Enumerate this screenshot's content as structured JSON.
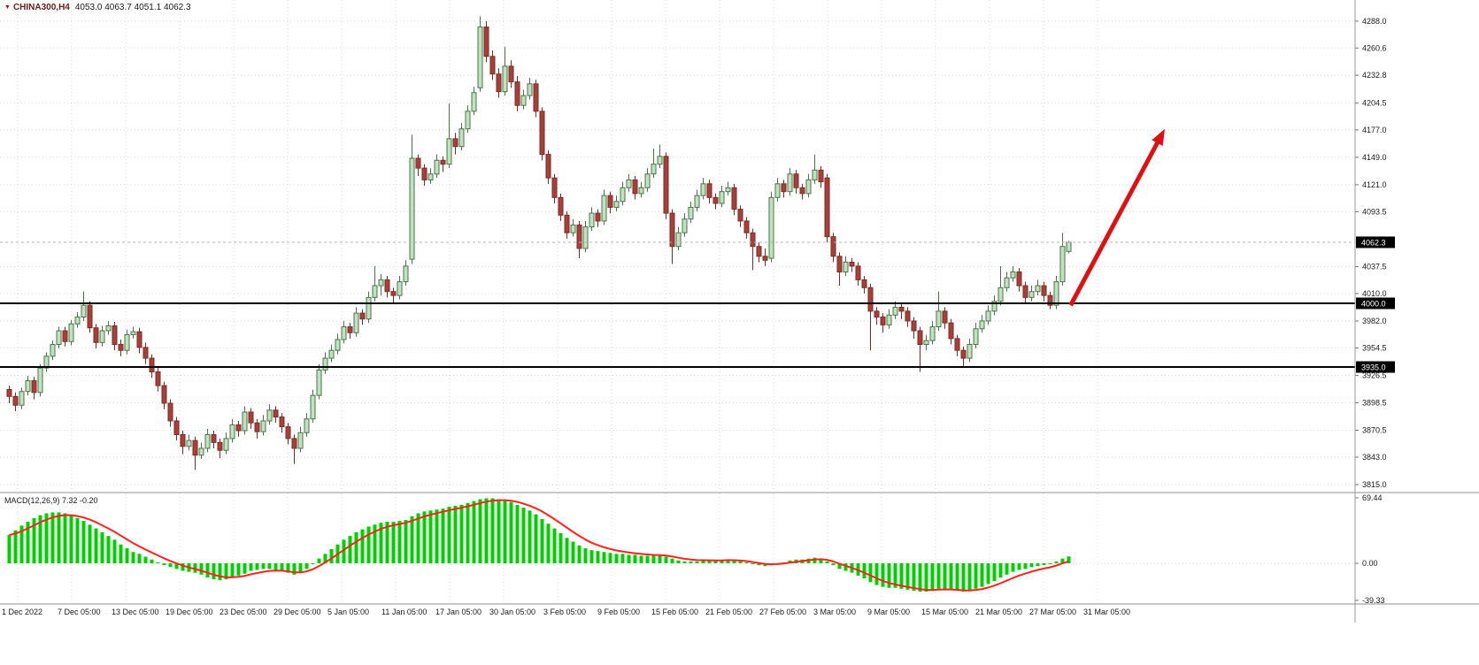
{
  "header": {
    "symbol_marker": "▼",
    "title_symbol": "CHINA300,H4",
    "title_ohlc": "4053.0 4063.7 4051.1 4062.3"
  },
  "macd_panel": {
    "label": "MACD(12,26,9) 7.32 -0.20",
    "axis": [
      "69.44",
      "0.00",
      "-39.33"
    ]
  },
  "price_axis": {
    "labels": [
      "4288.0",
      "4260.6",
      "4232.8",
      "4204.5",
      "4177.0",
      "4149.0",
      "4121.0",
      "4093.5",
      "4037.5",
      "4010.0",
      "3982.0",
      "3954.5",
      "3926.5",
      "3898.5",
      "3870.5",
      "3843.0",
      "3815.0"
    ],
    "badges": [
      {
        "value": "4062.3",
        "price": 4062.3,
        "type": "current-price"
      },
      {
        "value": "4000.0",
        "price": 4000.0,
        "type": "level"
      },
      {
        "value": "3935.0",
        "price": 3935.0,
        "type": "level"
      }
    ]
  },
  "time_axis": {
    "labels": [
      "1 Dec 2022",
      "7 Dec 05:00",
      "13 Dec 05:00",
      "19 Dec 05:00",
      "23 Dec 05:00",
      "29 Dec 05:00",
      "5 Jan 05:00",
      "11 Jan 05:00",
      "17 Jan 05:00",
      "30 Jan 05:00",
      "3 Feb 05:00",
      "9 Feb 05:00",
      "15 Feb 05:00",
      "21 Feb 05:00",
      "27 Feb 05:00",
      "3 Mar 05:00",
      "9 Mar 05:00",
      "15 Mar 05:00",
      "21 Mar 05:00",
      "27 Mar 05:00",
      "31 Mar 05:00"
    ]
  },
  "colors": {
    "bull_fill": "#bfe3bf",
    "bull_border": "#487448",
    "bear_fill": "#a8403a",
    "bear_border": "#7e2a24",
    "histogram": "#00d000",
    "signal_line": "#ff2020",
    "arrow": "#e01010",
    "level_line": "#000000",
    "grid": "#d9d9d9",
    "badge_bg": "#000000",
    "badge_text": "#ffffff",
    "axis_text": "#1a1a1a",
    "separator": "#c8c8c8",
    "axis_border": "#9a9a9a"
  },
  "chart_data": {
    "type": "candlestick+macd",
    "symbol": "CHINA300",
    "timeframe": "H4",
    "title": "CHINA300,H4 4053.0 4063.7 4051.1 4062.3",
    "current_bar_ohlc": {
      "open": 4053.0,
      "high": 4063.7,
      "low": 4051.1,
      "close": 4062.3
    },
    "price_range": [
      3815.0,
      4288.0
    ],
    "current_price": 4062.3,
    "horizontal_levels": [
      4000.0,
      3935.0
    ],
    "x_range": [
      "1 Dec 2022",
      "31 Mar 05:00"
    ],
    "candles": [
      [
        3912,
        3916,
        3898,
        3905
      ],
      [
        3905,
        3909,
        3890,
        3896
      ],
      [
        3896,
        3914,
        3892,
        3910
      ],
      [
        3910,
        3926,
        3906,
        3921
      ],
      [
        3921,
        3925,
        3902,
        3909
      ],
      [
        3909,
        3938,
        3905,
        3934
      ],
      [
        3934,
        3950,
        3930,
        3946
      ],
      [
        3946,
        3962,
        3942,
        3958
      ],
      [
        3958,
        3976,
        3954,
        3972
      ],
      [
        3972,
        3976,
        3956,
        3961
      ],
      [
        3961,
        3983,
        3957,
        3979
      ],
      [
        3979,
        3991,
        3975,
        3986
      ],
      [
        3986,
        4012,
        3982,
        3998
      ],
      [
        3998,
        4002,
        3970,
        3975
      ],
      [
        3975,
        3979,
        3954,
        3960
      ],
      [
        3960,
        3977,
        3956,
        3972
      ],
      [
        3972,
        3982,
        3968,
        3977
      ],
      [
        3977,
        3981,
        3952,
        3958
      ],
      [
        3958,
        3963,
        3946,
        3952
      ],
      [
        3952,
        3973,
        3948,
        3968
      ],
      [
        3968,
        3976,
        3964,
        3971
      ],
      [
        3971,
        3975,
        3949,
        3955
      ],
      [
        3955,
        3960,
        3938,
        3944
      ],
      [
        3944,
        3948,
        3924,
        3930
      ],
      [
        3930,
        3934,
        3910,
        3916
      ],
      [
        3916,
        3920,
        3892,
        3898
      ],
      [
        3898,
        3902,
        3874,
        3880
      ],
      [
        3880,
        3884,
        3860,
        3866
      ],
      [
        3866,
        3870,
        3846,
        3854
      ],
      [
        3854,
        3866,
        3850,
        3860
      ],
      [
        3860,
        3864,
        3830,
        3845
      ],
      [
        3845,
        3858,
        3841,
        3852
      ],
      [
        3852,
        3872,
        3848,
        3866
      ],
      [
        3866,
        3870,
        3852,
        3858
      ],
      [
        3858,
        3862,
        3842,
        3850
      ],
      [
        3850,
        3868,
        3846,
        3862
      ],
      [
        3862,
        3882,
        3858,
        3876
      ],
      [
        3876,
        3880,
        3864,
        3870
      ],
      [
        3870,
        3895,
        3866,
        3889
      ],
      [
        3889,
        3893,
        3872,
        3878
      ],
      [
        3878,
        3882,
        3862,
        3869
      ],
      [
        3869,
        3886,
        3865,
        3880
      ],
      [
        3880,
        3897,
        3876,
        3891
      ],
      [
        3891,
        3895,
        3878,
        3884
      ],
      [
        3884,
        3888,
        3868,
        3874
      ],
      [
        3874,
        3878,
        3856,
        3862
      ],
      [
        3862,
        3866,
        3836,
        3852
      ],
      [
        3852,
        3874,
        3848,
        3868
      ],
      [
        3868,
        3888,
        3864,
        3882
      ],
      [
        3882,
        3912,
        3878,
        3906
      ],
      [
        3906,
        3938,
        3902,
        3932
      ],
      [
        3932,
        3950,
        3928,
        3944
      ],
      [
        3944,
        3958,
        3940,
        3952
      ],
      [
        3952,
        3969,
        3948,
        3963
      ],
      [
        3963,
        3982,
        3959,
        3976
      ],
      [
        3976,
        3980,
        3964,
        3970
      ],
      [
        3970,
        3996,
        3966,
        3990
      ],
      [
        3990,
        3994,
        3978,
        3984
      ],
      [
        3984,
        4012,
        3980,
        4006
      ],
      [
        4006,
        4038,
        4002,
        4018
      ],
      [
        4018,
        4030,
        4008,
        4024
      ],
      [
        4024,
        4028,
        4006,
        4012
      ],
      [
        4012,
        4016,
        4000,
        4008
      ],
      [
        4008,
        4028,
        4004,
        4022
      ],
      [
        4022,
        4044,
        4018,
        4038
      ],
      [
        4045,
        4172,
        4040,
        4148
      ],
      [
        4148,
        4152,
        4130,
        4138
      ],
      [
        4138,
        4142,
        4120,
        4126
      ],
      [
        4126,
        4138,
        4122,
        4132
      ],
      [
        4132,
        4152,
        4128,
        4146
      ],
      [
        4146,
        4150,
        4134,
        4142
      ],
      [
        4142,
        4204,
        4138,
        4168
      ],
      [
        4168,
        4174,
        4152,
        4160
      ],
      [
        4160,
        4184,
        4156,
        4178
      ],
      [
        4178,
        4202,
        4174,
        4196
      ],
      [
        4196,
        4221,
        4192,
        4215
      ],
      [
        4220,
        4293,
        4216,
        4282
      ],
      [
        4282,
        4288,
        4246,
        4252
      ],
      [
        4252,
        4258,
        4228,
        4234
      ],
      [
        4234,
        4240,
        4210,
        4216
      ],
      [
        4216,
        4262,
        4212,
        4242
      ],
      [
        4242,
        4248,
        4220,
        4226
      ],
      [
        4226,
        4232,
        4196,
        4202
      ],
      [
        4202,
        4218,
        4198,
        4212
      ],
      [
        4212,
        4230,
        4208,
        4224
      ],
      [
        4224,
        4228,
        4190,
        4196
      ],
      [
        4196,
        4200,
        4146,
        4152
      ],
      [
        4152,
        4156,
        4122,
        4128
      ],
      [
        4128,
        4132,
        4102,
        4108
      ],
      [
        4108,
        4112,
        4084,
        4090
      ],
      [
        4090,
        4094,
        4066,
        4072
      ],
      [
        4072,
        4086,
        4068,
        4080
      ],
      [
        4080,
        4084,
        4046,
        4056
      ],
      [
        4056,
        4084,
        4052,
        4078
      ],
      [
        4078,
        4098,
        4074,
        4092
      ],
      [
        4092,
        4096,
        4078,
        4084
      ],
      [
        4084,
        4116,
        4080,
        4110
      ],
      [
        4110,
        4114,
        4092,
        4098
      ],
      [
        4098,
        4110,
        4094,
        4104
      ],
      [
        4104,
        4124,
        4100,
        4118
      ],
      [
        4118,
        4132,
        4114,
        4126
      ],
      [
        4126,
        4130,
        4106,
        4112
      ],
      [
        4112,
        4124,
        4108,
        4118
      ],
      [
        4118,
        4138,
        4114,
        4132
      ],
      [
        4132,
        4158,
        4128,
        4142
      ],
      [
        4142,
        4162,
        4138,
        4150
      ],
      [
        4150,
        4154,
        4086,
        4092
      ],
      [
        4092,
        4096,
        4040,
        4058
      ],
      [
        4058,
        4078,
        4054,
        4072
      ],
      [
        4072,
        4092,
        4068,
        4086
      ],
      [
        4086,
        4104,
        4082,
        4098
      ],
      [
        4098,
        4116,
        4094,
        4110
      ],
      [
        4110,
        4128,
        4106,
        4122
      ],
      [
        4122,
        4126,
        4102,
        4108
      ],
      [
        4108,
        4112,
        4096,
        4102
      ],
      [
        4102,
        4120,
        4098,
        4114
      ],
      [
        4114,
        4124,
        4110,
        4118
      ],
      [
        4118,
        4122,
        4090,
        4096
      ],
      [
        4096,
        4100,
        4078,
        4084
      ],
      [
        4084,
        4088,
        4066,
        4072
      ],
      [
        4072,
        4076,
        4034,
        4058
      ],
      [
        4058,
        4062,
        4042,
        4048
      ],
      [
        4048,
        4056,
        4038,
        4044
      ],
      [
        4046,
        4114,
        4042,
        4108
      ],
      [
        4108,
        4128,
        4104,
        4122
      ],
      [
        4122,
        4126,
        4108,
        4114
      ],
      [
        4114,
        4138,
        4110,
        4132
      ],
      [
        4132,
        4136,
        4112,
        4118
      ],
      [
        4118,
        4122,
        4106,
        4112
      ],
      [
        4112,
        4132,
        4108,
        4126
      ],
      [
        4126,
        4152,
        4122,
        4136
      ],
      [
        4136,
        4140,
        4118,
        4124
      ],
      [
        4128,
        4132,
        4062,
        4068
      ],
      [
        4068,
        4072,
        4042,
        4048
      ],
      [
        4048,
        4052,
        4018,
        4032
      ],
      [
        4032,
        4048,
        4028,
        4042
      ],
      [
        4042,
        4046,
        4032,
        4038
      ],
      [
        4038,
        4042,
        4018,
        4024
      ],
      [
        4024,
        4028,
        4010,
        4016
      ],
      [
        4016,
        4020,
        3952,
        3992
      ],
      [
        3992,
        3996,
        3978,
        3986
      ],
      [
        3986,
        3990,
        3970,
        3978
      ],
      [
        3978,
        3994,
        3974,
        3988
      ],
      [
        3988,
        4002,
        3984,
        3996
      ],
      [
        3996,
        4000,
        3984,
        3992
      ],
      [
        3992,
        3996,
        3976,
        3982
      ],
      [
        3982,
        3986,
        3964,
        3972
      ],
      [
        3972,
        3976,
        3930,
        3958
      ],
      [
        3958,
        3968,
        3952,
        3962
      ],
      [
        3962,
        3982,
        3958,
        3976
      ],
      [
        3976,
        4012,
        3972,
        3992
      ],
      [
        3992,
        3996,
        3974,
        3980
      ],
      [
        3980,
        3984,
        3958,
        3964
      ],
      [
        3964,
        3968,
        3946,
        3952
      ],
      [
        3952,
        3956,
        3936,
        3944
      ],
      [
        3944,
        3964,
        3940,
        3958
      ],
      [
        3958,
        3980,
        3954,
        3974
      ],
      [
        3974,
        3988,
        3970,
        3982
      ],
      [
        3982,
        3998,
        3978,
        3992
      ],
      [
        3992,
        4008,
        3988,
        4002
      ],
      [
        4002,
        4038,
        3998,
        4016
      ],
      [
        4016,
        4032,
        4012,
        4026
      ],
      [
        4026,
        4038,
        4022,
        4032
      ],
      [
        4032,
        4036,
        4012,
        4018
      ],
      [
        4018,
        4022,
        4000,
        4006
      ],
      [
        4006,
        4018,
        4002,
        4012
      ],
      [
        4012,
        4024,
        4008,
        4018
      ],
      [
        4018,
        4022,
        4002,
        4008
      ],
      [
        4008,
        4012,
        3994,
        3998
      ],
      [
        3998,
        4028,
        3994,
        4022
      ],
      [
        4022,
        4072,
        4018,
        4058
      ],
      [
        4053,
        4063.7,
        4051.1,
        4062.3
      ]
    ],
    "macd": {
      "params": "12,26,9",
      "macd_value": 7.32,
      "signal_value": -0.2,
      "axis_ticks": [
        69.44,
        0,
        -39.33
      ],
      "histogram": [
        30,
        35,
        40,
        44,
        48,
        51,
        53,
        54,
        54,
        53,
        51,
        48,
        45,
        41,
        37,
        33,
        29,
        25,
        20,
        16,
        12,
        10,
        7,
        4,
        1,
        -2,
        -4,
        -6,
        -8,
        -9,
        -10,
        -12,
        -15,
        -17,
        -18,
        -17,
        -15,
        -13,
        -11,
        -8,
        -7,
        -6,
        -6,
        -7,
        -8,
        -10,
        -12,
        -10,
        -6,
        -1,
        5,
        10,
        15,
        20,
        25,
        29,
        33,
        36,
        39,
        41,
        43,
        44,
        44,
        45,
        46,
        50,
        53,
        55,
        56,
        57,
        58,
        60,
        61,
        62,
        64,
        66,
        68,
        69,
        69,
        68,
        67,
        65,
        62,
        59,
        56,
        52,
        47,
        42,
        37,
        32,
        27,
        23,
        19,
        16,
        14,
        13,
        12,
        11,
        10,
        10,
        9,
        9,
        8,
        8,
        8,
        8,
        7,
        5,
        3,
        2,
        2,
        2,
        3,
        3,
        3,
        3,
        4,
        3,
        2,
        1,
        -1,
        -2,
        -3,
        -2,
        0,
        1,
        3,
        4,
        4,
        5,
        6,
        5,
        2,
        -2,
        -6,
        -8,
        -10,
        -13,
        -16,
        -20,
        -23,
        -25,
        -26,
        -26,
        -27,
        -28,
        -29,
        -30,
        -30,
        -29,
        -27,
        -27,
        -28,
        -29,
        -30,
        -29,
        -27,
        -25,
        -22,
        -19,
        -15,
        -12,
        -9,
        -7,
        -6,
        -4,
        -3,
        -2,
        -1,
        2,
        5,
        7.32
      ]
    },
    "annotations": [
      {
        "type": "arrow",
        "direction": "up",
        "color": "#e01010",
        "from": {
          "x_index": 171.3,
          "price": 3998
        },
        "to": {
          "x_index": 186.5,
          "price": 4178
        }
      }
    ]
  }
}
